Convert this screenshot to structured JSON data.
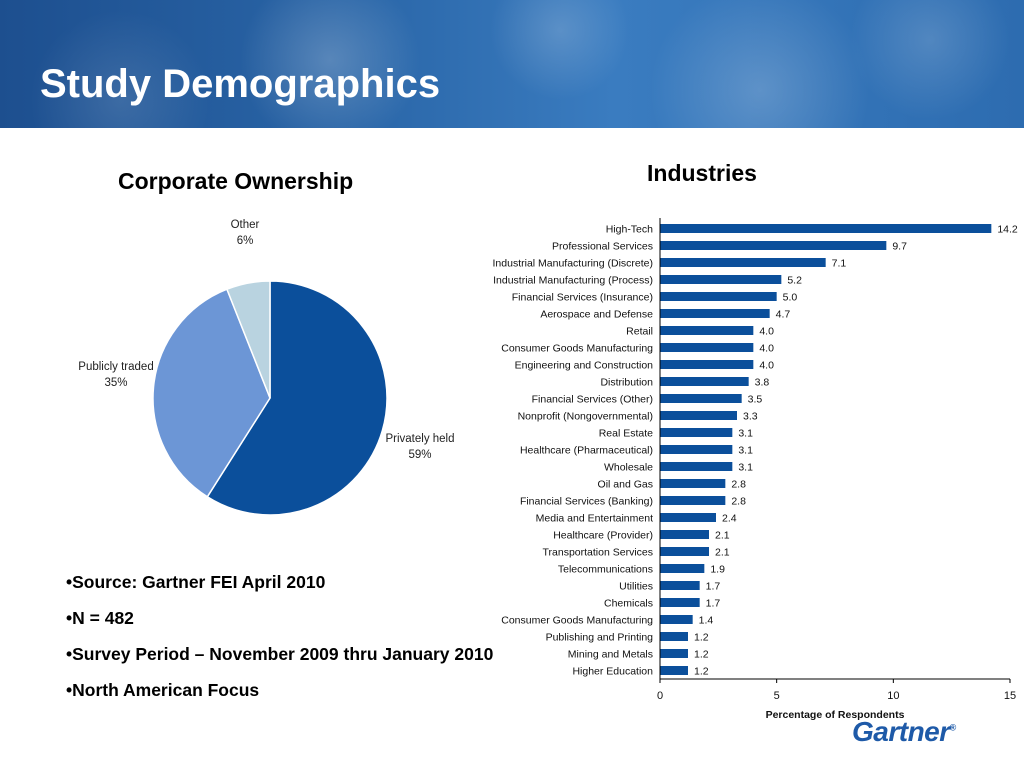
{
  "header": {
    "title": "Study Demographics"
  },
  "chart_data": [
    {
      "type": "pie",
      "title": "Corporate Ownership",
      "slices": [
        {
          "label": "Privately held",
          "value": 59,
          "value_label": "59%",
          "color": "#0b4f9b"
        },
        {
          "label": "Publicly traded",
          "value": 35,
          "value_label": "35%",
          "color": "#6c96d6"
        },
        {
          "label": "Other",
          "value": 6,
          "value_label": "6%",
          "color": "#b9d3e0"
        }
      ]
    },
    {
      "type": "bar",
      "orientation": "horizontal",
      "title": "Industries",
      "xlabel": "Percentage of Respondents",
      "xlim": [
        0,
        15
      ],
      "xticks": [
        0,
        5,
        10,
        15
      ],
      "bar_color": "#0b4f9b",
      "categories": [
        "High-Tech",
        "Professional Services",
        "Industrial Manufacturing (Discrete)",
        "Industrial Manufacturing (Process)",
        "Financial Services (Insurance)",
        "Aerospace and Defense",
        "Retail",
        "Consumer Goods Manufacturing",
        "Engineering and Construction",
        "Distribution",
        "Financial Services (Other)",
        "Nonprofit (Nongovernmental)",
        "Real Estate",
        "Healthcare (Pharmaceutical)",
        "Wholesale",
        "Oil and Gas",
        "Financial Services (Banking)",
        "Media and Entertainment",
        "Healthcare (Provider)",
        "Transportation Services",
        "Telecommunications",
        "Utilities",
        "Chemicals",
        "Consumer Goods Manufacturing",
        "Publishing and Printing",
        "Mining and Metals",
        "Higher Education"
      ],
      "values": [
        14.2,
        9.7,
        7.1,
        5.2,
        5.0,
        4.7,
        4.0,
        4.0,
        4.0,
        3.8,
        3.5,
        3.3,
        3.1,
        3.1,
        3.1,
        2.8,
        2.8,
        2.4,
        2.1,
        2.1,
        1.9,
        1.7,
        1.7,
        1.4,
        1.2,
        1.2,
        1.2
      ],
      "value_labels": [
        "14.2",
        "9.7",
        "7.1",
        "5.2",
        "5.0",
        "4.7",
        "4.0",
        "4.0",
        "4.0",
        "3.8",
        "3.5",
        "3.3",
        "3.1",
        "3.1",
        "3.1",
        "2.8",
        "2.8",
        "2.4",
        "2.1",
        "2.1",
        "1.9",
        "1.7",
        "1.7",
        "1.4",
        "1.2",
        "1.2",
        "1.2"
      ]
    }
  ],
  "notes": [
    "•Source: Gartner FEI April 2010",
    "•N = 482",
    "•Survey Period – November 2009 thru January 2010",
    "•North American Focus"
  ],
  "brand": {
    "logo_text": "Gartner",
    "logo_mark": "®"
  }
}
